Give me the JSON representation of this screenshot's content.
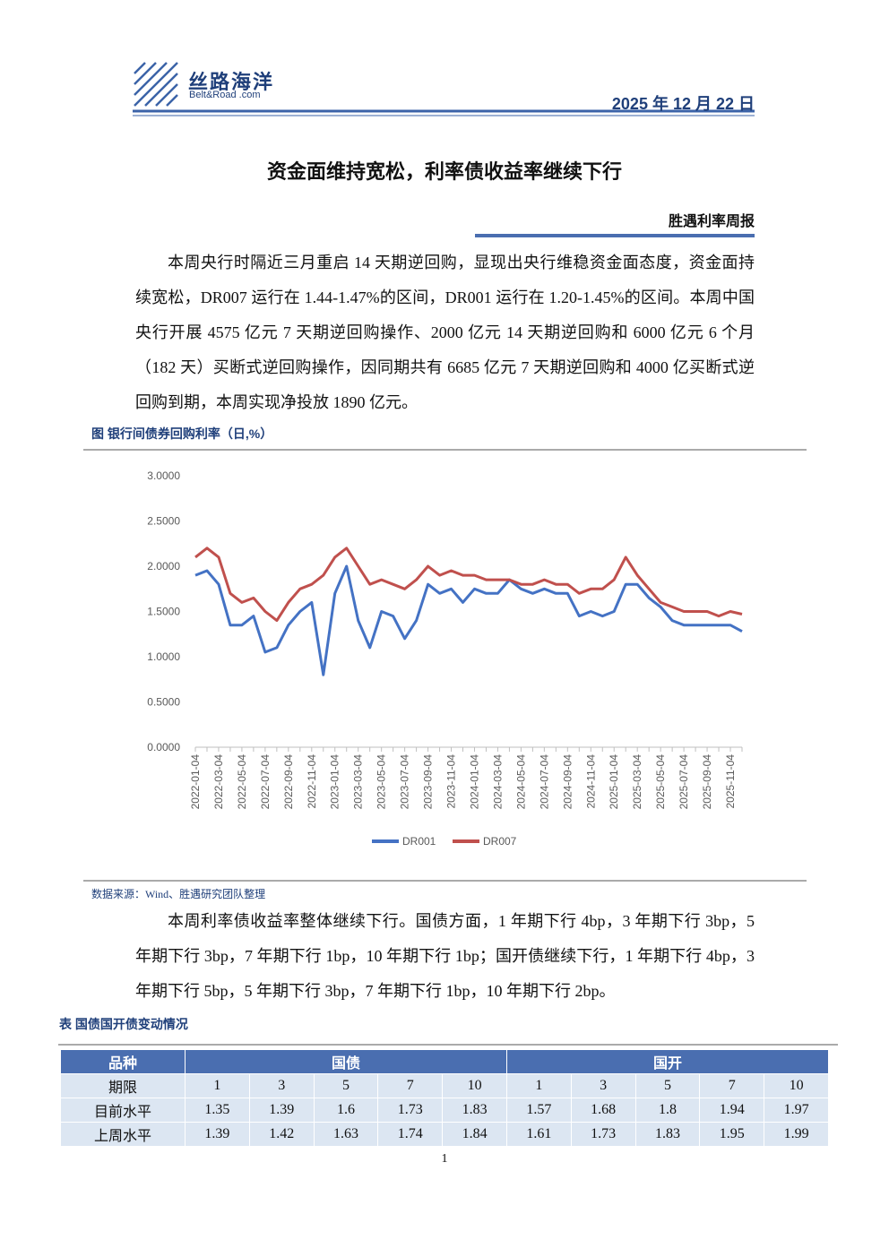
{
  "header": {
    "logo": "丝路海洋",
    "logo_sub": "Belt&Road .com",
    "date": "2025 年 12 月 22 日"
  },
  "title": "资金面维持宽松，利率债收益率继续下行",
  "column": "胜遇利率周报",
  "paragraphs": [
    "本周央行时隔近三月重启 14 天期逆回购，显现出央行维稳资金面态度，资金面持续宽松，DR007 运行在 1.44-1.47%的区间，DR001 运行在 1.20-1.45%的区间。本周中国央行开展 4575 亿元 7 天期逆回购操作、2000 亿元 14 天期逆回购和 6000 亿元 6 个月（182 天）买断式逆回购操作，因同期共有 6685 亿元 7 天期逆回购和 4000 亿买断式逆回购到期，本周实现净投放 1890 亿元。",
    "本周利率债收益率整体继续下行。国债方面，1 年期下行 4bp，3 年期下行 3bp，5 年期下行 3bp，7 年期下行 1bp，10 年期下行 1bp；国开债继续下行，1 年期下行 4bp，3 年期下行 5bp，5 年期下行 3bp，7 年期下行 1bp，10 年期下行 2bp。"
  ],
  "figure": {
    "caption": "图   银行间债券回购利率（日,%）",
    "source": "数据来源：Wind、胜遇研究团队整理"
  },
  "chart_data": {
    "type": "line",
    "categories": [
      "2022-01-04",
      null,
      "2022-03-04",
      null,
      "2022-05-04",
      null,
      "2022-07-04",
      null,
      "2022-09-04",
      null,
      "2022-11-04",
      null,
      "2023-01-04",
      null,
      "2023-03-04",
      null,
      "2023-05-04",
      null,
      "2023-07-04",
      null,
      "2023-09-04",
      null,
      "2023-11-04",
      null,
      "2024-01-04",
      null,
      "2024-03-04",
      null,
      "2024-05-04",
      null,
      "2024-07-04",
      null,
      "2024-09-04",
      null,
      "2024-11-04",
      null,
      "2025-01-04",
      null,
      "2025-03-04",
      null,
      "2025-05-04",
      null,
      "2025-07-04",
      null,
      "2025-09-04",
      null,
      "2025-11-04",
      null
    ],
    "series": [
      {
        "name": "DR001",
        "color": "#4472c4",
        "values": [
          1.9,
          1.95,
          1.8,
          1.35,
          1.35,
          1.45,
          1.05,
          1.1,
          1.35,
          1.5,
          1.6,
          0.8,
          1.7,
          2.0,
          1.4,
          1.1,
          1.5,
          1.45,
          1.2,
          1.4,
          1.8,
          1.7,
          1.75,
          1.6,
          1.75,
          1.7,
          1.7,
          1.85,
          1.75,
          1.7,
          1.75,
          1.7,
          1.7,
          1.45,
          1.5,
          1.45,
          1.5,
          1.8,
          1.8,
          1.65,
          1.55,
          1.4,
          1.35,
          1.35,
          1.35,
          1.35,
          1.35,
          1.28
        ]
      },
      {
        "name": "DR007",
        "color": "#c0504d",
        "values": [
          2.1,
          2.2,
          2.1,
          1.7,
          1.6,
          1.65,
          1.5,
          1.4,
          1.6,
          1.75,
          1.8,
          1.9,
          2.1,
          2.2,
          2.0,
          1.8,
          1.85,
          1.8,
          1.75,
          1.85,
          2.0,
          1.9,
          1.95,
          1.9,
          1.9,
          1.85,
          1.85,
          1.85,
          1.8,
          1.8,
          1.85,
          1.8,
          1.8,
          1.7,
          1.75,
          1.75,
          1.85,
          2.1,
          1.9,
          1.75,
          1.6,
          1.55,
          1.5,
          1.5,
          1.5,
          1.45,
          1.5,
          1.47
        ]
      }
    ],
    "ylim": [
      0,
      3
    ],
    "yticks": [
      {
        "value": 0,
        "label": "0.0000"
      },
      {
        "value": 0.5,
        "label": "0.5000"
      },
      {
        "value": 1,
        "label": "1.0000"
      },
      {
        "value": 1.5,
        "label": "1.5000"
      },
      {
        "value": 2,
        "label": "2.0000"
      },
      {
        "value": 2.5,
        "label": "2.5000"
      },
      {
        "value": 3,
        "label": "3.0000"
      }
    ],
    "grid": false,
    "legend": "bottom"
  },
  "table": {
    "caption": "表   国债国开债变动情况",
    "header": [
      "品种",
      "国债",
      "国开"
    ],
    "rows": [
      [
        "期限",
        "1",
        "3",
        "5",
        "7",
        "10",
        "1",
        "3",
        "5",
        "7",
        "10"
      ],
      [
        "目前水平",
        "1.35",
        "1.39",
        "1.6",
        "1.73",
        "1.83",
        "1.57",
        "1.68",
        "1.8",
        "1.94",
        "1.97"
      ],
      [
        "上周水平",
        "1.39",
        "1.42",
        "1.63",
        "1.74",
        "1.84",
        "1.61",
        "1.73",
        "1.83",
        "1.95",
        "1.99"
      ]
    ]
  },
  "page_number": "1"
}
